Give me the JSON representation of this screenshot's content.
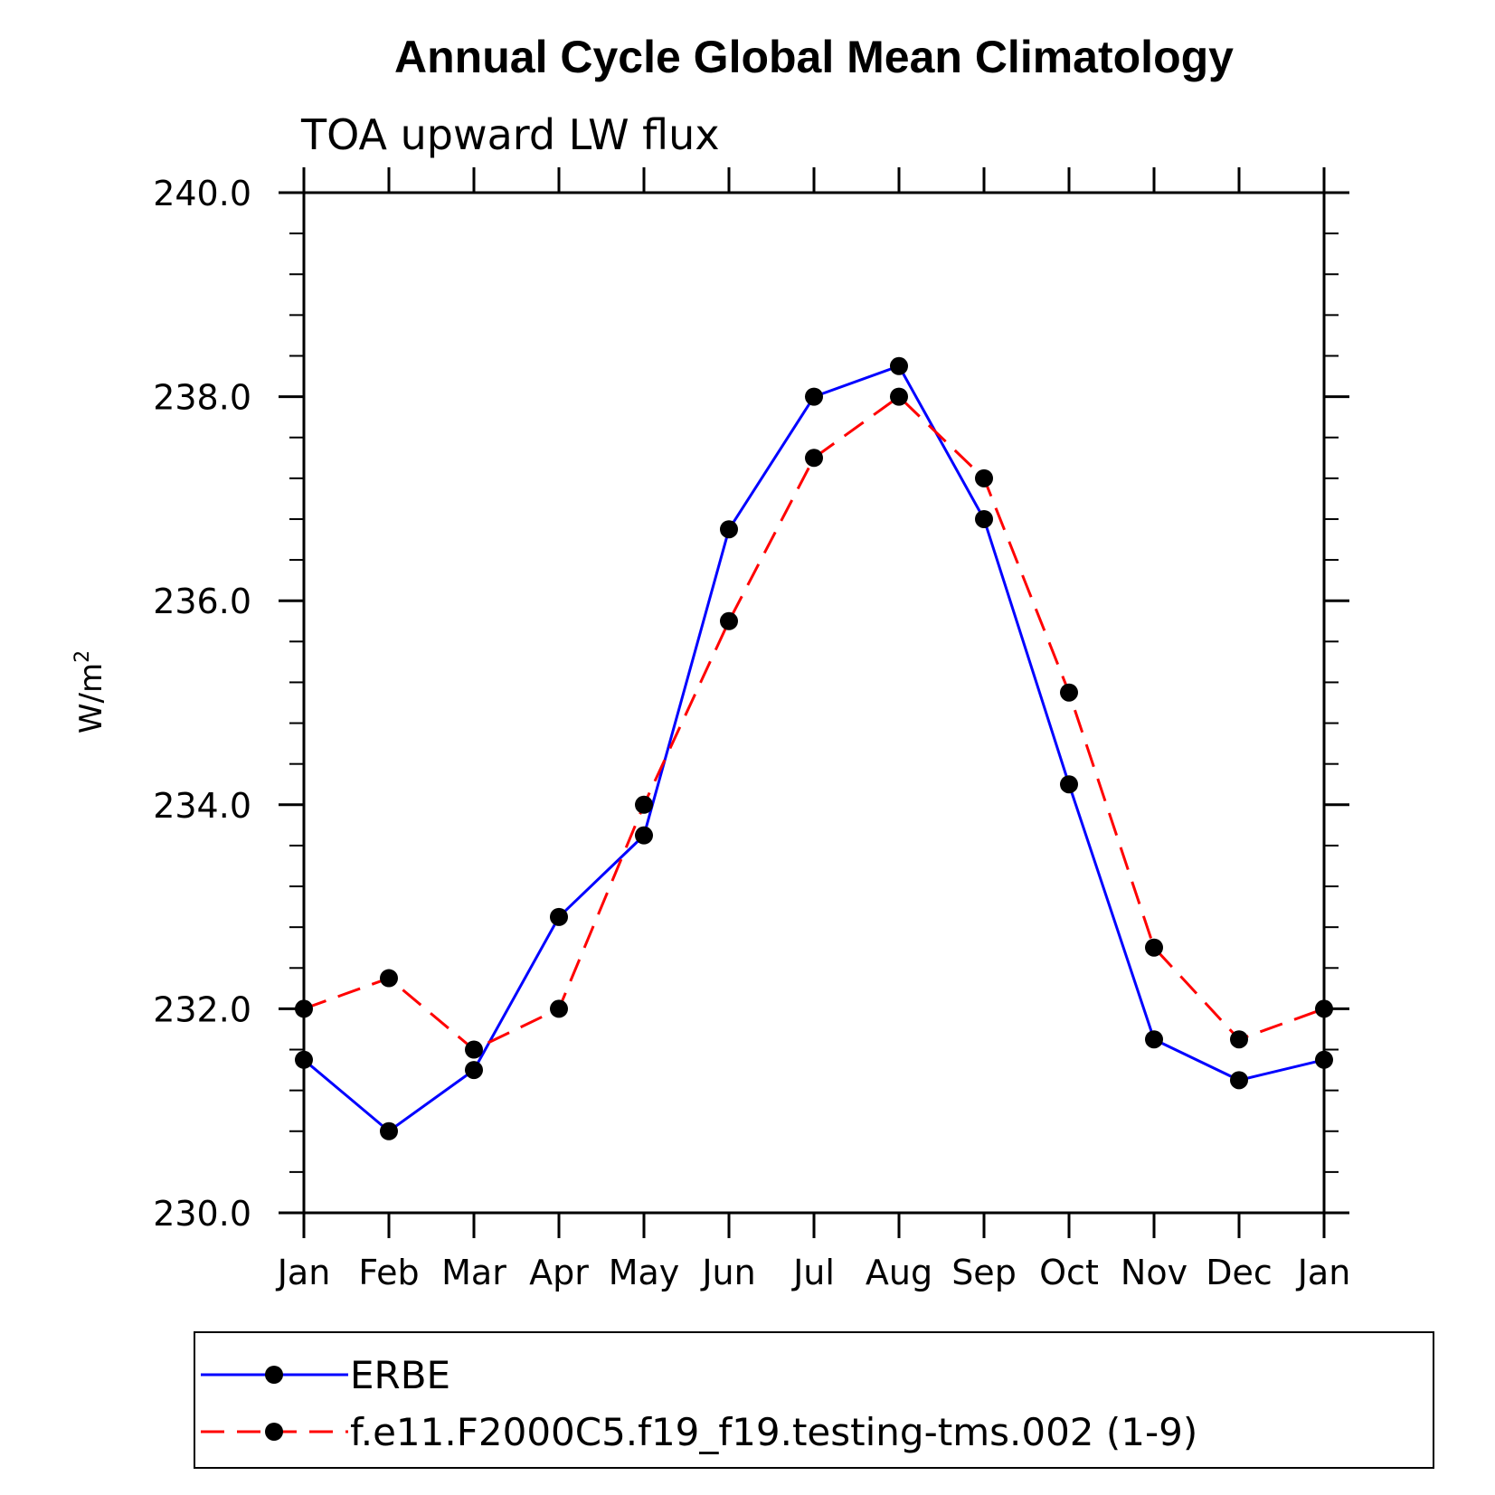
{
  "chart_data": {
    "type": "line",
    "title": "Annual Cycle Global Mean Climatology",
    "subtitle": "TOA upward LW flux",
    "ylabel": "W/m",
    "ylabel_superscript": "2",
    "categories": [
      "Jan",
      "Feb",
      "Mar",
      "Apr",
      "May",
      "Jun",
      "Jul",
      "Aug",
      "Sep",
      "Oct",
      "Nov",
      "Dec",
      "Jan"
    ],
    "ylim": [
      230.0,
      240.0
    ],
    "yticks": [
      "230.0",
      "232.0",
      "234.0",
      "236.0",
      "238.0",
      "240.0"
    ],
    "series": [
      {
        "name": "ERBE",
        "color": "#0000ff",
        "line_style": "solid",
        "marker": "filled-circle",
        "values": [
          231.5,
          230.8,
          231.4,
          232.9,
          233.7,
          236.7,
          238.0,
          238.3,
          236.8,
          234.2,
          231.7,
          231.3,
          231.5
        ]
      },
      {
        "name": "f.e11.F2000C5.f19_f19.testing-tms.002 (1-9)",
        "color": "#ff0000",
        "line_style": "dashed",
        "marker": "filled-circle",
        "values": [
          232.0,
          232.3,
          231.6,
          232.0,
          234.0,
          235.8,
          237.4,
          238.0,
          237.2,
          235.1,
          232.6,
          231.7,
          232.0
        ]
      }
    ],
    "grid": false,
    "legend_position": "bottom"
  }
}
